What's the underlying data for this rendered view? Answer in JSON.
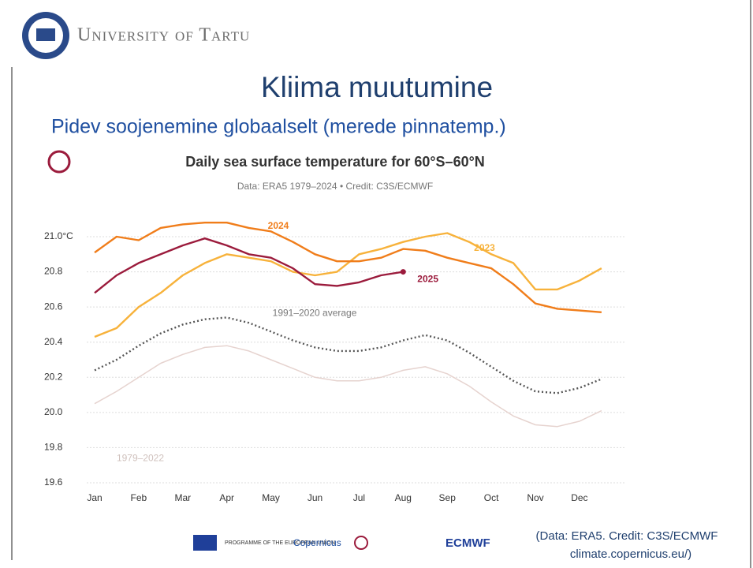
{
  "header": {
    "institution": "University of Tartu"
  },
  "slide": {
    "title": "Kliima muutumine",
    "subtitle": "Pidev soojenemine globaalselt (merede pinnatemp.)"
  },
  "chart_data": {
    "type": "line",
    "title": "Daily sea surface temperature for 60°S–60°N",
    "subtitle": "Data: ERA5 1979–2024 • Credit: C3S/ECMWF",
    "categories": [
      "Jan",
      null,
      "Feb",
      null,
      "Mar",
      null,
      "Apr",
      null,
      "May",
      null,
      "Jun",
      null,
      "Jul",
      null,
      "Aug",
      null,
      "Sep",
      null,
      "Oct",
      null,
      "Nov",
      null,
      "Dec",
      null
    ],
    "ylim": [
      19.6,
      21.1
    ],
    "yticks": [
      19.6,
      19.8,
      {
        "value": 20.0,
        "label": "20.0"
      },
      20.2,
      20.4,
      20.6,
      20.8,
      {
        "value": 21.0,
        "label": "21.0°C"
      }
    ],
    "grid": true,
    "series": [
      {
        "name": "1979–2022",
        "color": "#e6d3cf",
        "values": [
          20.05,
          20.12,
          20.2,
          20.28,
          20.33,
          20.37,
          20.38,
          20.35,
          20.3,
          20.25,
          20.2,
          20.18,
          20.18,
          20.2,
          20.24,
          20.26,
          20.22,
          20.15,
          20.06,
          19.98,
          19.93,
          19.92,
          19.95,
          20.01
        ]
      },
      {
        "name": "1991–2020 average",
        "color": "#555555",
        "values": [
          20.24,
          20.3,
          20.38,
          20.45,
          20.5,
          20.53,
          20.54,
          20.51,
          20.46,
          20.41,
          20.37,
          20.35,
          20.35,
          20.37,
          20.41,
          20.44,
          20.41,
          20.34,
          20.26,
          20.18,
          20.12,
          20.11,
          20.14,
          20.19
        ]
      },
      {
        "name": "2023",
        "color": "#f7b23b",
        "values": [
          20.43,
          20.48,
          20.6,
          20.68,
          20.78,
          20.85,
          20.9,
          20.88,
          20.86,
          20.8,
          20.78,
          20.8,
          20.9,
          20.93,
          20.97,
          21.0,
          21.02,
          20.97,
          20.9,
          20.85,
          20.7,
          20.7,
          20.75,
          20.82
        ]
      },
      {
        "name": "2024",
        "color": "#f07d1a",
        "values": [
          20.91,
          21.0,
          20.98,
          21.05,
          21.07,
          21.08,
          21.08,
          21.05,
          21.03,
          20.97,
          20.9,
          20.86,
          20.86,
          20.88,
          20.93,
          20.92,
          20.88,
          20.85,
          20.82,
          20.73,
          20.62,
          20.59,
          20.58,
          20.57
        ]
      },
      {
        "name": "2025",
        "color": "#9b1b3c",
        "values": [
          20.68,
          20.78,
          20.85,
          20.9,
          20.95,
          20.99,
          20.95,
          20.9,
          20.88,
          20.82,
          20.73,
          20.72,
          20.74,
          20.78,
          20.8,
          null,
          null,
          null,
          null,
          null,
          null,
          null,
          null,
          null
        ]
      }
    ]
  },
  "footer": {
    "logos": [
      "PROGRAMME OF THE EUROPEAN UNION",
      "Copernicus",
      "ECMWF"
    ],
    "credit": [
      "(Data: ERA5. Credit: C3S/ECMWF",
      "climate.copernicus.eu/)"
    ]
  }
}
